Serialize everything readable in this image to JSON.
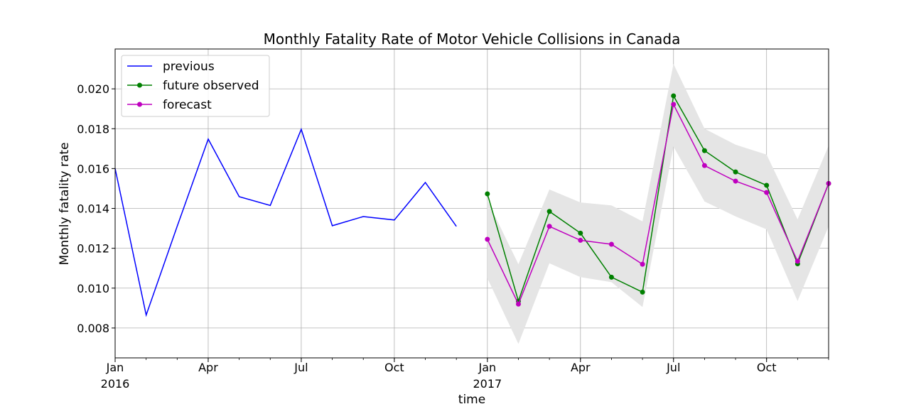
{
  "chart_data": {
    "type": "line",
    "title": "Monthly Fatality Rate of Motor Vehicle Collisions in Canada",
    "xlabel": "time",
    "ylabel": "Monthly fatality rate",
    "xlim": [
      "2016-01",
      "2017-12"
    ],
    "ylim": [
      0.0065,
      0.022
    ],
    "grid": true,
    "legend_position": "upper-left",
    "x_ticks": [
      {
        "month": "2016-01",
        "label": "Jan",
        "sublabel": "2016"
      },
      {
        "month": "2016-04",
        "label": "Apr",
        "sublabel": ""
      },
      {
        "month": "2016-07",
        "label": "Jul",
        "sublabel": ""
      },
      {
        "month": "2016-10",
        "label": "Oct",
        "sublabel": ""
      },
      {
        "month": "2017-01",
        "label": "Jan",
        "sublabel": "2017"
      },
      {
        "month": "2017-04",
        "label": "Apr",
        "sublabel": ""
      },
      {
        "month": "2017-07",
        "label": "Jul",
        "sublabel": ""
      },
      {
        "month": "2017-10",
        "label": "Oct",
        "sublabel": ""
      }
    ],
    "y_ticks": [
      "0.008",
      "0.010",
      "0.012",
      "0.014",
      "0.016",
      "0.018",
      "0.020"
    ],
    "series": [
      {
        "name": "previous",
        "color": "#0000ff",
        "markers": false,
        "x": [
          "2016-01",
          "2016-02",
          "2016-03",
          "2016-04",
          "2016-05",
          "2016-06",
          "2016-07",
          "2016-08",
          "2016-09",
          "2016-10",
          "2016-11",
          "2016-12"
        ],
        "y": [
          0.016,
          0.00865,
          0.0131,
          0.01748,
          0.01459,
          0.01415,
          0.01797,
          0.01313,
          0.01359,
          0.01342,
          0.0153,
          0.0131
        ]
      },
      {
        "name": "future observed",
        "color": "#008000",
        "markers": true,
        "x": [
          "2017-01",
          "2017-02",
          "2017-03",
          "2017-04",
          "2017-05",
          "2017-06",
          "2017-07",
          "2017-08",
          "2017-09",
          "2017-10",
          "2017-11",
          "2017-12"
        ],
        "y": [
          0.01473,
          0.00935,
          0.01385,
          0.01276,
          0.01055,
          0.0098,
          0.01965,
          0.0169,
          0.01583,
          0.01516,
          0.01122,
          0.01525
        ]
      },
      {
        "name": "forecast",
        "color": "#bf00bf",
        "markers": true,
        "x": [
          "2017-01",
          "2017-02",
          "2017-03",
          "2017-04",
          "2017-05",
          "2017-06",
          "2017-07",
          "2017-08",
          "2017-09",
          "2017-10",
          "2017-11",
          "2017-12"
        ],
        "y": [
          0.01245,
          0.0092,
          0.0131,
          0.0124,
          0.0122,
          0.0112,
          0.01922,
          0.01615,
          0.01537,
          0.0148,
          0.01135,
          0.01525
        ]
      }
    ],
    "confidence_band": {
      "color": "#e5e5e5",
      "x": [
        "2017-01",
        "2017-02",
        "2017-03",
        "2017-04",
        "2017-05",
        "2017-06",
        "2017-07",
        "2017-08",
        "2017-09",
        "2017-10",
        "2017-11",
        "2017-12"
      ],
      "lower": [
        0.0105,
        0.0072,
        0.01125,
        0.01055,
        0.0103,
        0.00905,
        0.0171,
        0.01435,
        0.0136,
        0.01295,
        0.00935,
        0.0131
      ],
      "upper": [
        0.0144,
        0.0112,
        0.01495,
        0.0143,
        0.01415,
        0.01335,
        0.02125,
        0.018,
        0.0172,
        0.0167,
        0.01345,
        0.01715
      ]
    }
  }
}
